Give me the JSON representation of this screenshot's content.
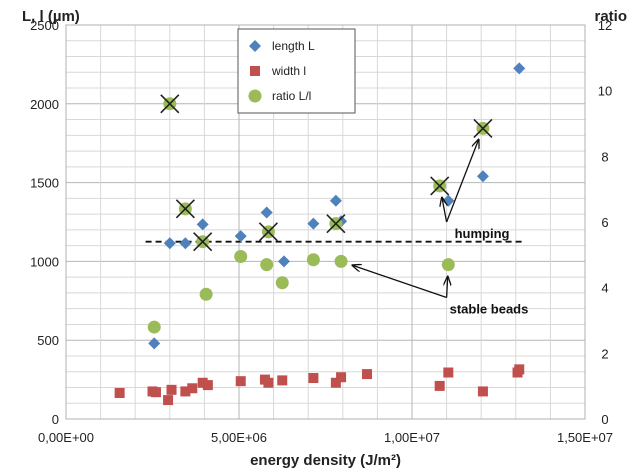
{
  "chart_data": {
    "type": "scatter",
    "xlabel": "energy density (J/m²)",
    "ylabel_left": "L, l (µm)",
    "ylabel_right": "ratio",
    "xlim": [
      0,
      15000000
    ],
    "ylim_left": [
      0,
      2500
    ],
    "ylim_right": [
      0,
      12
    ],
    "x_ticks": [
      "0,00E+00",
      "5,00E+06",
      "1,00E+07",
      "1,50E+07"
    ],
    "y_ticks_left": [
      "0",
      "500",
      "1000",
      "1500",
      "2000",
      "2500"
    ],
    "y_ticks_right": [
      "0",
      "2",
      "4",
      "6",
      "8",
      "10",
      "12"
    ],
    "grid": true,
    "legend_position": "top-center",
    "series": [
      {
        "name": "length  L",
        "axis": "left",
        "marker": "diamond",
        "color": "#4f81bd",
        "points": [
          [
            2550000,
            480
          ],
          [
            3000000,
            1115
          ],
          [
            3450000,
            1115
          ],
          [
            3950000,
            1235
          ],
          [
            5050000,
            1160
          ],
          [
            5800000,
            1310
          ],
          [
            6300000,
            1000
          ],
          [
            7150000,
            1240
          ],
          [
            7800000,
            1385
          ],
          [
            7950000,
            1255
          ],
          [
            11050000,
            1385
          ],
          [
            12050000,
            1540
          ],
          [
            13100000,
            2225
          ]
        ]
      },
      {
        "name": "width l",
        "axis": "left",
        "marker": "square",
        "color": "#c0504d",
        "points": [
          [
            1550000,
            165
          ],
          [
            2500000,
            175
          ],
          [
            2600000,
            170
          ],
          [
            2950000,
            120
          ],
          [
            3050000,
            185
          ],
          [
            3450000,
            175
          ],
          [
            3650000,
            195
          ],
          [
            3950000,
            230
          ],
          [
            4100000,
            215
          ],
          [
            5050000,
            240
          ],
          [
            5750000,
            250
          ],
          [
            5850000,
            230
          ],
          [
            6250000,
            245
          ],
          [
            7150000,
            260
          ],
          [
            7800000,
            230
          ],
          [
            7950000,
            265
          ],
          [
            8700000,
            285
          ],
          [
            10800000,
            210
          ],
          [
            11050000,
            295
          ],
          [
            12050000,
            175
          ],
          [
            13050000,
            295
          ],
          [
            13100000,
            315
          ]
        ]
      },
      {
        "name": "ratio L/l",
        "axis": "right",
        "marker": "circle",
        "color": "#9bbb59",
        "points": [
          [
            2550000,
            2.8
          ],
          [
            3000000,
            9.6
          ],
          [
            3450000,
            6.4
          ],
          [
            3950000,
            5.4
          ],
          [
            4050000,
            3.8
          ],
          [
            5050000,
            4.95
          ],
          [
            5800000,
            4.7
          ],
          [
            5850000,
            5.7
          ],
          [
            6250000,
            4.15
          ],
          [
            7150000,
            4.85
          ],
          [
            7800000,
            5.95
          ],
          [
            7950000,
            4.8
          ],
          [
            10800000,
            7.1
          ],
          [
            11050000,
            4.7
          ],
          [
            12050000,
            8.85
          ]
        ]
      }
    ],
    "humping_marked": [
      [
        3000000,
        9.6
      ],
      [
        3450000,
        6.4
      ],
      [
        3950000,
        5.4
      ],
      [
        5850000,
        5.7
      ],
      [
        7800000,
        5.95
      ],
      [
        10800000,
        7.1
      ],
      [
        12050000,
        8.85
      ]
    ],
    "threshold_line": {
      "axis": "right",
      "value": 5.4,
      "style": "dashed"
    },
    "annotations": [
      {
        "text": "humping",
        "anchor": [
          11000000,
          6.0
        ],
        "targets": [
          [
            10800000,
            7.1
          ],
          [
            12050000,
            8.85
          ]
        ]
      },
      {
        "text": "stable beads",
        "anchor": [
          11000000,
          3.7
        ],
        "targets": [
          [
            7950000,
            4.8
          ],
          [
            11050000,
            4.7
          ]
        ]
      }
    ]
  }
}
